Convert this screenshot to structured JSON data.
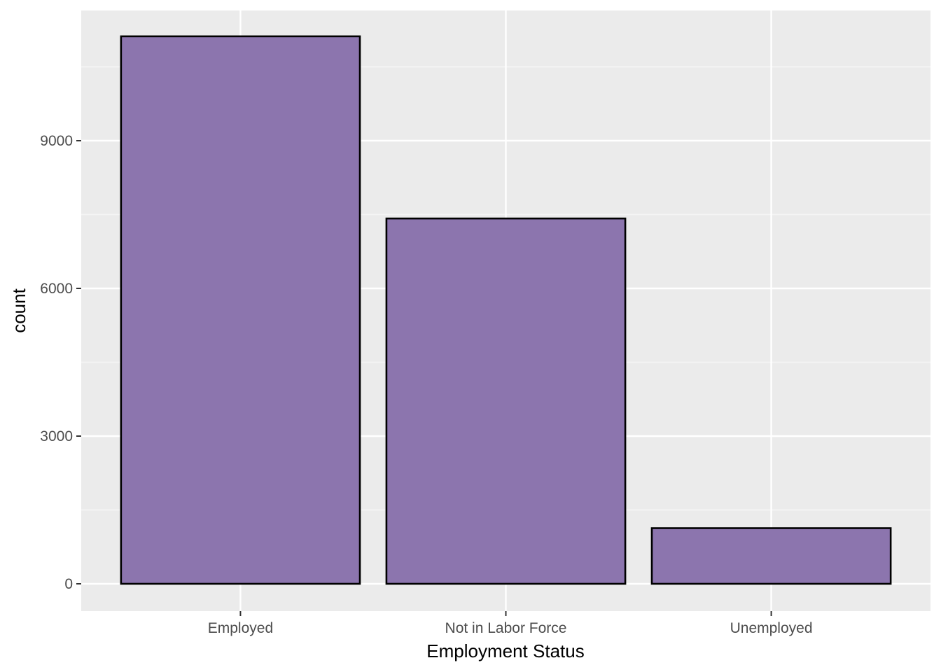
{
  "chart_data": {
    "type": "bar",
    "title": "",
    "xlabel": "Employment Status",
    "ylabel": "count",
    "categories": [
      "Employed",
      "Not in Labor Force",
      "Unemployed"
    ],
    "values": [
      11120,
      7420,
      1130
    ],
    "ylim": [
      0,
      11680
    ],
    "yticks": [
      0,
      3000,
      6000,
      9000
    ],
    "grid": true,
    "legend": "none",
    "colors": {
      "bar_fill": "#8c75ae",
      "bar_stroke": "#000000",
      "panel_background": "#ebebeb",
      "grid_major": "#ffffff",
      "grid_minor": "#f5f5f5"
    }
  }
}
